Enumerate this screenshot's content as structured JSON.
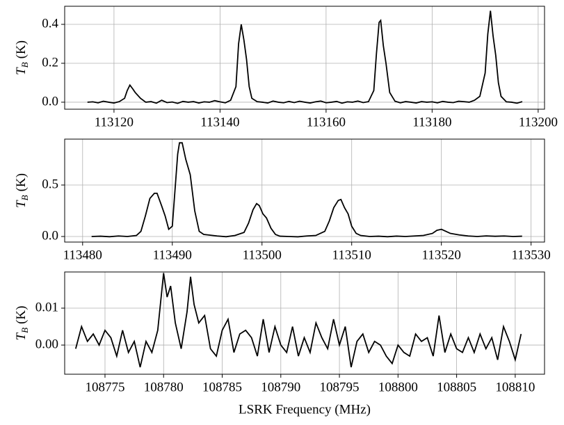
{
  "chart_data": [
    {
      "type": "line",
      "ylabel": {
        "symbol": "T",
        "subscript": "B",
        "unit": "(K)"
      },
      "grid": true,
      "xlim": [
        113110.7,
        113201.2
      ],
      "ylim": [
        -0.036,
        0.493
      ],
      "xticks": [
        113120,
        113140,
        113160,
        113180,
        113200
      ],
      "yticks": [
        {
          "value": 0,
          "label": "0.0"
        },
        0.2,
        0.4
      ],
      "x": [
        113115,
        113116,
        113117,
        113118,
        113119,
        113120,
        113121,
        113122,
        113122.5,
        113123,
        113123.5,
        113124,
        113125,
        113126,
        113127,
        113128,
        113129,
        113130,
        113131,
        113132,
        113133,
        113134,
        113135,
        113136,
        113137,
        113138,
        113139,
        113140,
        113141,
        113142,
        113143,
        113143.5,
        113144,
        113144.5,
        113145,
        113145.5,
        113146,
        113147,
        113148,
        113149,
        113150,
        113151,
        113152,
        113153,
        113154,
        113155,
        113156,
        113157,
        113158,
        113159,
        113160,
        113161,
        113162,
        113163,
        113164,
        113165,
        113166,
        113167,
        113168,
        113169,
        113169.5,
        113170,
        113170.3,
        113170.8,
        113171.3,
        113172,
        113173,
        113174,
        113175,
        113176,
        113177,
        113178,
        113179,
        113180,
        113181,
        113182,
        113183,
        113184,
        113185,
        113186,
        113187,
        113188,
        113189,
        113190,
        113190.5,
        113191,
        113191.5,
        113192,
        113192.5,
        113193,
        113194,
        113195,
        113196,
        113197
      ],
      "series": [
        {
          "color": "#000000",
          "values": [
            0.0,
            0.002,
            -0.003,
            0.005,
            0.0,
            -0.004,
            0.003,
            0.02,
            0.06,
            0.088,
            0.07,
            0.05,
            0.02,
            0.0,
            0.003,
            -0.005,
            0.01,
            -0.002,
            0.001,
            -0.006,
            0.004,
            0.0,
            0.003,
            -0.004,
            0.002,
            0.0,
            0.008,
            0.002,
            -0.003,
            0.01,
            0.08,
            0.3,
            0.4,
            0.32,
            0.22,
            0.08,
            0.02,
            0.003,
            0.0,
            -0.004,
            0.006,
            0.0,
            -0.003,
            0.004,
            -0.002,
            0.005,
            0.0,
            -0.004,
            0.002,
            0.006,
            -0.003,
            0.0,
            0.004,
            -0.005,
            0.002,
            0.0,
            0.006,
            -0.002,
            0.003,
            0.06,
            0.25,
            0.41,
            0.42,
            0.29,
            0.2,
            0.05,
            0.005,
            -0.003,
            0.003,
            0.0,
            -0.004,
            0.003,
            0.0,
            0.002,
            -0.003,
            0.004,
            0.0,
            -0.002,
            0.005,
            0.003,
            0.0,
            0.01,
            0.03,
            0.15,
            0.35,
            0.47,
            0.34,
            0.24,
            0.1,
            0.03,
            0.002,
            0.0,
            -0.005,
            0.003
          ]
        }
      ]
    },
    {
      "type": "line",
      "ylabel": {
        "symbol": "T",
        "subscript": "B",
        "unit": "(K)"
      },
      "grid": true,
      "xlim": [
        113478,
        113531.5
      ],
      "ylim": [
        -0.054,
        0.946
      ],
      "xticks": [
        113480,
        113490,
        113500,
        113510,
        113520,
        113530
      ],
      "yticks": [
        {
          "value": 0,
          "label": "0.0"
        },
        0.5
      ],
      "x": [
        113481,
        113482,
        113483,
        113484,
        113485,
        113486,
        113486.5,
        113487,
        113487.5,
        113488,
        113488.3,
        113488.8,
        113489.2,
        113489.6,
        113490,
        113490.3,
        113490.6,
        113490.8,
        113491.1,
        113491.5,
        113492,
        113492.5,
        113493,
        113493.5,
        113494,
        113495,
        113496,
        113497,
        113498,
        113498.5,
        113499,
        113499.4,
        113499.7,
        113500.1,
        113500.5,
        113501,
        113501.5,
        113502,
        113503,
        113504,
        113505,
        113506,
        113507,
        113507.5,
        113508,
        113508.5,
        113508.8,
        113509.2,
        113509.6,
        113510,
        113510.5,
        113511,
        113512,
        113513,
        113514,
        113515,
        113516,
        113517,
        113518,
        113519,
        113519.5,
        113520,
        113520.5,
        113521,
        113522,
        113523,
        113524,
        113525,
        113526,
        113527,
        113528,
        113529
      ],
      "series": [
        {
          "color": "#000000",
          "values": [
            0.0,
            0.003,
            -0.002,
            0.005,
            0.0,
            0.01,
            0.05,
            0.2,
            0.37,
            0.42,
            0.42,
            0.3,
            0.2,
            0.07,
            0.1,
            0.45,
            0.8,
            0.91,
            0.91,
            0.75,
            0.6,
            0.25,
            0.05,
            0.02,
            0.015,
            0.005,
            -0.002,
            0.01,
            0.04,
            0.13,
            0.26,
            0.32,
            0.3,
            0.22,
            0.18,
            0.08,
            0.02,
            0.003,
            0.0,
            -0.003,
            0.005,
            0.01,
            0.05,
            0.15,
            0.28,
            0.35,
            0.36,
            0.28,
            0.22,
            0.1,
            0.03,
            0.01,
            0.0,
            0.003,
            -0.002,
            0.004,
            0.0,
            0.005,
            0.01,
            0.03,
            0.06,
            0.07,
            0.05,
            0.03,
            0.015,
            0.005,
            0.0,
            0.006,
            0.002,
            0.005,
            0.0,
            0.003
          ]
        }
      ]
    },
    {
      "type": "line",
      "ylabel": {
        "symbol": "T",
        "subscript": "B",
        "unit": "(K)"
      },
      "xlabel": "LSRK Frequency (MHz)",
      "grid": true,
      "xlim": [
        108771.56,
        108812.5
      ],
      "ylim": [
        -0.0079,
        0.0198
      ],
      "xticks": [
        108775,
        108780,
        108785,
        108790,
        108795,
        108800,
        108805,
        108810
      ],
      "yticks": [
        {
          "value": 0,
          "label": "0.00"
        },
        {
          "value": 0.01,
          "label": "0.01"
        }
      ],
      "x": [
        108772.5,
        108773,
        108773.5,
        108774,
        108774.5,
        108775,
        108775.5,
        108776,
        108776.5,
        108777,
        108777.5,
        108778,
        108778.5,
        108779,
        108779.5,
        108780,
        108780.3,
        108780.6,
        108781,
        108781.5,
        108782,
        108782.3,
        108782.6,
        108783,
        108783.5,
        108784,
        108784.5,
        108785,
        108785.5,
        108786,
        108786.5,
        108787,
        108787.5,
        108788,
        108788.5,
        108789,
        108789.5,
        108790,
        108790.5,
        108791,
        108791.5,
        108792,
        108792.5,
        108793,
        108793.5,
        108794,
        108794.5,
        108795,
        108795.5,
        108796,
        108796.5,
        108797,
        108797.5,
        108798,
        108798.5,
        108799,
        108799.5,
        108800,
        108800.5,
        108801,
        108801.5,
        108802,
        108802.5,
        108803,
        108803.5,
        108804,
        108804.5,
        108805,
        108805.5,
        108806,
        108806.5,
        108807,
        108807.5,
        108808,
        108808.5,
        108809,
        108809.5,
        108810,
        108810.5
      ],
      "series": [
        {
          "color": "#000000",
          "values": [
            -0.001,
            0.005,
            0.001,
            0.003,
            0.0,
            0.004,
            0.002,
            -0.003,
            0.004,
            -0.002,
            0.001,
            -0.006,
            0.001,
            -0.002,
            0.004,
            0.0195,
            0.013,
            0.016,
            0.006,
            -0.001,
            0.009,
            0.0185,
            0.011,
            0.006,
            0.008,
            -0.001,
            -0.003,
            0.004,
            0.007,
            -0.002,
            0.003,
            0.004,
            0.002,
            -0.003,
            0.007,
            -0.002,
            0.005,
            0.0,
            -0.002,
            0.005,
            -0.003,
            0.002,
            -0.002,
            0.006,
            0.002,
            -0.001,
            0.007,
            0.0,
            0.005,
            -0.006,
            0.001,
            0.003,
            -0.002,
            0.001,
            0.0,
            -0.003,
            -0.005,
            0.0,
            -0.002,
            -0.003,
            0.003,
            0.001,
            0.002,
            -0.003,
            0.008,
            -0.002,
            0.003,
            -0.001,
            -0.002,
            0.002,
            -0.002,
            0.003,
            -0.001,
            0.002,
            -0.004,
            0.005,
            0.001,
            -0.004,
            0.003
          ]
        }
      ]
    }
  ]
}
